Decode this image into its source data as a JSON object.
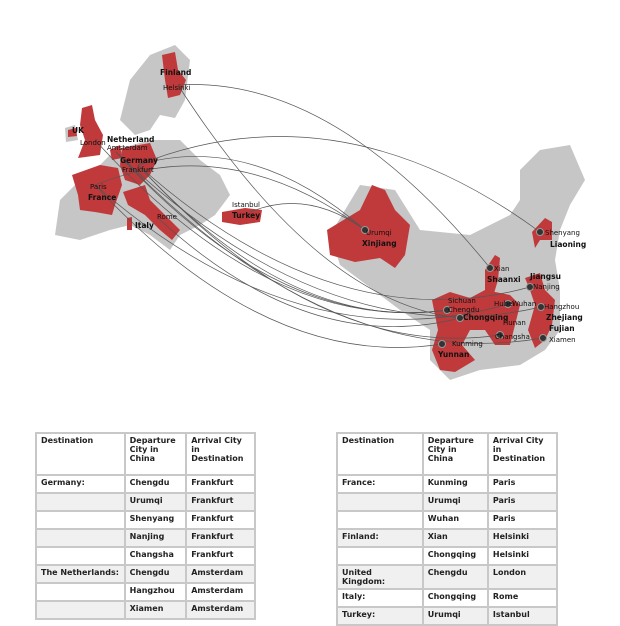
{
  "map": {
    "colors": {
      "highlight": "#c0393b",
      "land": "#c6c6c6",
      "route": "#555555"
    },
    "labels": {
      "finland": "Finland",
      "helsinki": "Helsinki",
      "uk": "UK",
      "london": "London",
      "netherland": "Netherland",
      "amsterdam": "Amsterdam",
      "germany": "Germany",
      "frankfurt": "Frankfurt",
      "paris": "Paris",
      "france": "France",
      "rome": "Rome",
      "italy": "Italy",
      "istanbul": "Istanbul",
      "turkey": "Turkey",
      "urumqi": "Urumqi",
      "xinjiang": "Xinjiang",
      "shenyang": "Shenyang",
      "liaoning": "Liaoning",
      "xian": "Xian",
      "shaanxi": "Shaanxi",
      "jiangsu": "Jiangsu",
      "nanjing": "Nanjing",
      "sichuan": "Sichuan",
      "chengdu": "Chengdu",
      "hubei": "Hubei",
      "wuhan": "Wuhan",
      "hangzhou": "Hangzhou",
      "zhejiang": "Zhejiang",
      "chongqing": "Chongqing",
      "hunan": "Hunan",
      "changsha": "Changsha",
      "fujian": "Fujian",
      "xiamen": "Xiamen",
      "kunming": "Kunming",
      "yunnan": "Yunnan"
    }
  },
  "tables": [
    {
      "headers": [
        "Destination",
        "Departure City in China",
        "Arrival City in Destination"
      ],
      "rows": [
        [
          "Germany:",
          "Chengdu",
          "Frankfurt"
        ],
        [
          "",
          "Urumqi",
          "Frankfurt"
        ],
        [
          "",
          "Shenyang",
          "Frankfurt"
        ],
        [
          "",
          "Nanjing",
          "Frankfurt"
        ],
        [
          "",
          "Changsha",
          "Frankfurt"
        ],
        [
          "The Netherlands:",
          "Chengdu",
          "Amsterdam"
        ],
        [
          "",
          "Hangzhou",
          "Amsterdam"
        ],
        [
          "",
          "Xiamen",
          "Amsterdam"
        ]
      ]
    },
    {
      "headers": [
        "Destination",
        "Departure City in China",
        "Arrival City in Destination"
      ],
      "rows": [
        [
          "France:",
          "Kunming",
          "Paris"
        ],
        [
          "",
          "Urumqi",
          "Paris"
        ],
        [
          "",
          "Wuhan",
          "Paris"
        ],
        [
          "Finland:",
          "Xian",
          "Helsinki"
        ],
        [
          "",
          "Chongqing",
          "Helsinki"
        ],
        [
          "United Kingdom:",
          "Chengdu",
          "London"
        ],
        [
          "Italy:",
          "Chongqing",
          "Rome"
        ],
        [
          "Turkey:",
          "Urumqi",
          "Istanbul"
        ]
      ]
    }
  ]
}
